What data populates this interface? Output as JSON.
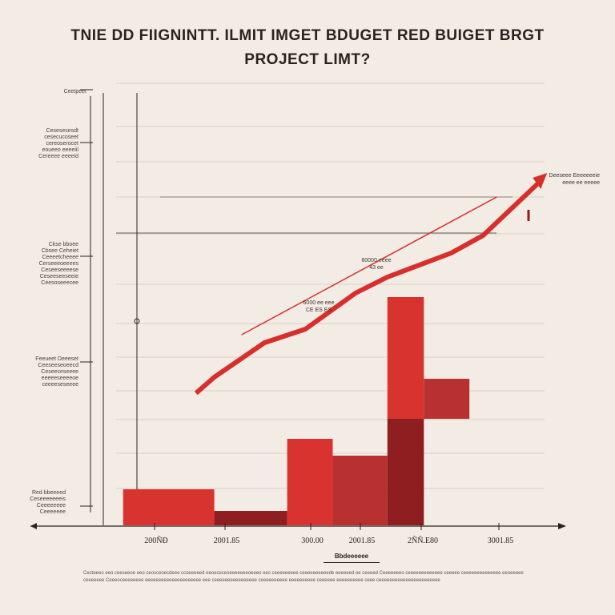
{
  "header": {
    "title_line1": "TNIE DD FIIGNINTT. ILMIT  IMGET BDUGET  RED BUIGET   BRGT",
    "title_line2": "PROJECT LIMT?"
  },
  "side_labels": [
    {
      "lines": [
        "Ceetpeet"
      ]
    },
    {
      "lines": [
        "Cesesesesdt",
        "cesecucoseet",
        "cereoserocet",
        "eoueeo eeeeiil",
        "Cereeee eeeeid"
      ]
    },
    {
      "lines": [
        "Ckse bboee",
        "Cbsee Ceheiet",
        "Ceeeetcheeee",
        "Cerseeeoeeees",
        "Ceseeseeeese",
        "Ceseeseeseeie",
        "Ceesoseeecee"
      ]
    },
    {
      "lines": [
        "Feeueet Deeeset",
        "Ceeseeseoeecd",
        "Ceseeceseeee",
        "eeeeeseeeeoe",
        "ceeeeseseeee"
      ]
    },
    {
      "lines": [
        "Red bbeeeed",
        "Ceseeeeeeeis",
        "Ceeeeeeee",
        "Ceeeeeee"
      ]
    }
  ],
  "annotations": {
    "top_right": [
      "Deeseee Eeeeeeeie",
      "eeee ee eeeee"
    ],
    "mid_1": [
      "60000 eeee",
      "43 ee"
    ],
    "mid_2": [
      "6000 ee eee",
      "CE ES ES"
    ]
  },
  "legend_label": "Bbdeeeeee",
  "footer_text": "Cecteeeo eeo ceeseeoe eeo ceosceoecdeee ccoeeeeed eeoececeoeeeeeeeoeeeo ees ceeeeeeeee ceeeeeeeeeede eeeeeed ee ceeeed Ceeeeeeeo ceeeeeeeeeeeee ceeeee ceeeeeeeeeeeeee eeoeeeee ceeeeeee Ceeeoceeeeeeee eeeeeeeeeeeeeeeeeeeee eee ceeeeeeeeeeeeeeee ceeeeeeeeee eeeeeeeeee ceeeeee eeeeeeeeee ceee ceeeeeeeeeeeeeeeeeeeeeee",
  "colors": {
    "bar_bright": "#d9332f",
    "bar_dark": "#8e1e1f",
    "bar_mid": "#b93030",
    "line_red": "#d62f2c",
    "axis": "#2a2220",
    "grid": "#d9d0c6"
  },
  "chart_data": {
    "type": "bar",
    "x_tick_labels": [
      "200ÑÐ",
      "2001.85",
      "300.00",
      "2001.85",
      "2ÑÑ.E80",
      "3001.85"
    ],
    "bars": [
      {
        "x_start": 0.0,
        "x_end": 1.0,
        "value": 45,
        "shade": "bright"
      },
      {
        "x_start": 1.0,
        "x_end": 1.8,
        "value": 18,
        "shade": "dark"
      },
      {
        "x_start": 1.8,
        "x_end": 2.3,
        "value": 108,
        "shade": "bright"
      },
      {
        "x_start": 2.3,
        "x_end": 2.9,
        "value": 87,
        "shade": "mid"
      },
      {
        "x_start": 2.9,
        "x_end": 3.3,
        "value": 133,
        "shade": "dark"
      },
      {
        "x_start": 2.9,
        "x_end": 3.3,
        "value": 285,
        "shade": "bright_top",
        "base": 133
      },
      {
        "x_start": 3.3,
        "x_end": 3.8,
        "value": 183,
        "shade": "mid_top",
        "base": 133
      }
    ],
    "trend_line": {
      "x": [
        0.8,
        1.0,
        1.55,
        2.0,
        2.55,
        2.9,
        3.6,
        3.95,
        4.6
      ],
      "y": [
        165,
        185,
        228,
        245,
        290,
        310,
        340,
        362,
        432
      ]
    },
    "limit_line": {
      "x": [
        1.3,
        4.1
      ],
      "y": [
        238,
        410
      ]
    },
    "ylim": [
      0,
      560
    ],
    "xlim": [
      -1.0,
      4.8
    ],
    "grid": true
  }
}
